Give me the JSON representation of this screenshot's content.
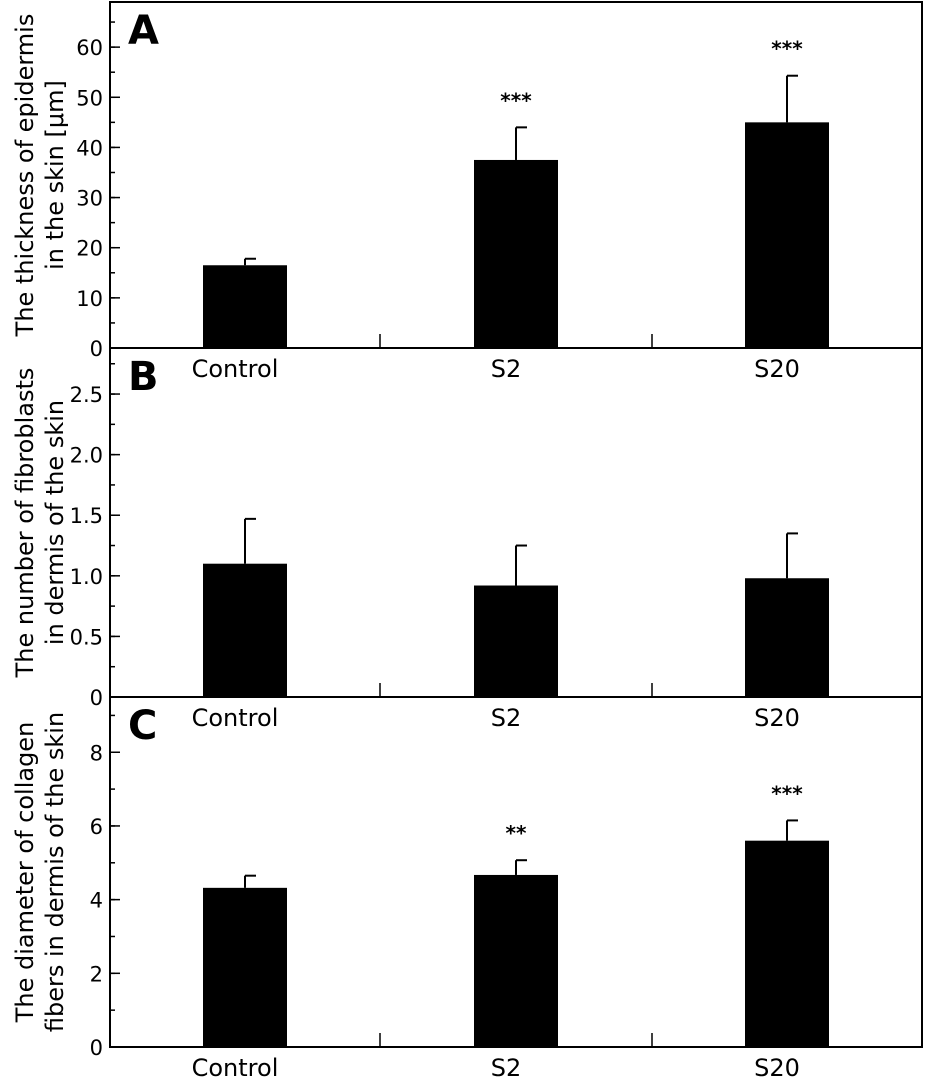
{
  "chart_data": [
    {
      "type": "bar",
      "panel_label": "A",
      "ylabel_lines": [
        "The thickness of epidermis",
        "in the skin [μm]"
      ],
      "categories": [
        "Control",
        "S2",
        "S20"
      ],
      "values": [
        16.5,
        37.5,
        45.0
      ],
      "errors": [
        1.3,
        6.5,
        9.3
      ],
      "significance": [
        "",
        "***",
        "***"
      ],
      "ylim": [
        0,
        69
      ],
      "yticks": [
        0,
        10,
        20,
        30,
        40,
        50,
        60
      ],
      "ytick_labels": [
        "0",
        "10",
        "20",
        "30",
        "40",
        "50",
        "60"
      ],
      "minor_step": 5
    },
    {
      "type": "bar",
      "panel_label": "B",
      "ylabel_lines": [
        "The number of fibroblasts",
        "in dermis of the skin"
      ],
      "categories": [
        "Control",
        "S2",
        "S20"
      ],
      "values": [
        1.1,
        0.92,
        0.98
      ],
      "errors": [
        0.37,
        0.33,
        0.37
      ],
      "significance": [
        "",
        "",
        ""
      ],
      "ylim": [
        0,
        2.88
      ],
      "yticks": [
        0,
        0.5,
        1.0,
        1.5,
        2.0,
        2.5
      ],
      "ytick_labels": [
        "0",
        "0.5",
        "1.0",
        "1.5",
        "2.0",
        "2.5"
      ],
      "minor_step": 0.25
    },
    {
      "type": "bar",
      "panel_label": "C",
      "ylabel_lines": [
        "The diameter of collagen",
        "fibers in dermis of the skin"
      ],
      "categories": [
        "Control",
        "S2",
        "S20"
      ],
      "values": [
        4.32,
        4.67,
        5.6
      ],
      "errors": [
        0.33,
        0.4,
        0.55
      ],
      "significance": [
        "",
        "**",
        "***"
      ],
      "ylim": [
        0,
        9.5
      ],
      "yticks": [
        0,
        2,
        4,
        6,
        8
      ],
      "ytick_labels": [
        "0",
        "2",
        "4",
        "6",
        "8"
      ],
      "minor_step": 1
    }
  ]
}
